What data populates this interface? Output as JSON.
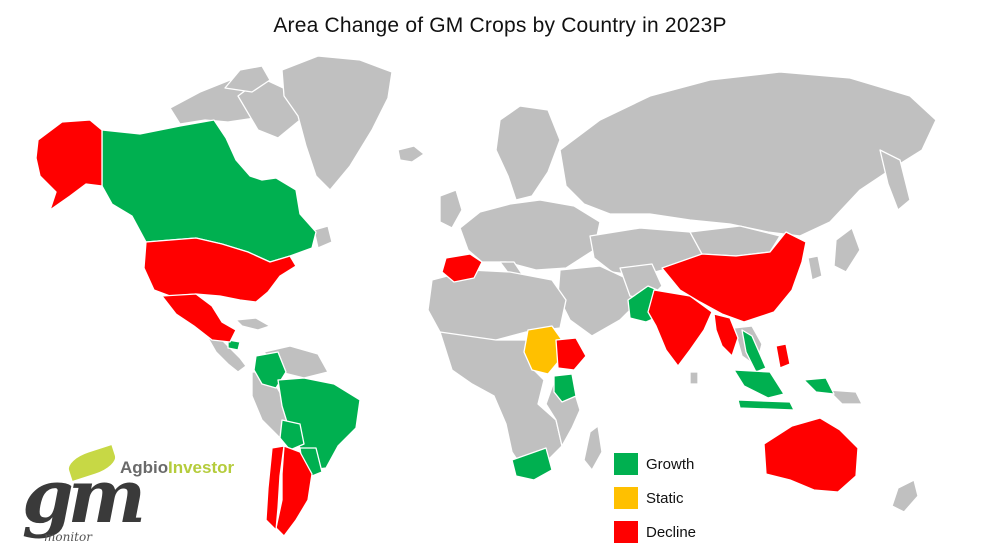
{
  "title": "Area Change of GM Crops by Country in 2023P",
  "colors": {
    "growth": "#00b050",
    "static": "#ffc000",
    "decline": "#ff0000",
    "no_data": "#c0c0c0"
  },
  "legend": [
    {
      "label": "Growth",
      "color": "#00b050"
    },
    {
      "label": "Static",
      "color": "#ffc000"
    },
    {
      "label": "Decline",
      "color": "#ff0000"
    }
  ],
  "countries": {
    "growth": [
      "Canada",
      "Colombia",
      "Brazil",
      "Paraguay",
      "Uruguay",
      "Pakistan",
      "Kenya",
      "South Africa",
      "Vietnam",
      "Indonesia",
      "Honduras",
      "Bolivia"
    ],
    "static": [
      "Sudan"
    ],
    "decline": [
      "United States",
      "Mexico",
      "Argentina",
      "Chile",
      "Spain",
      "Ethiopia",
      "India",
      "China",
      "Myanmar",
      "Bangladesh",
      "Philippines",
      "Australia",
      "Alaska (USA)"
    ]
  },
  "logo": {
    "brand_part1": "Agbio",
    "brand_part2": "Investor",
    "mark": "gm",
    "subtitle": "monitor"
  }
}
